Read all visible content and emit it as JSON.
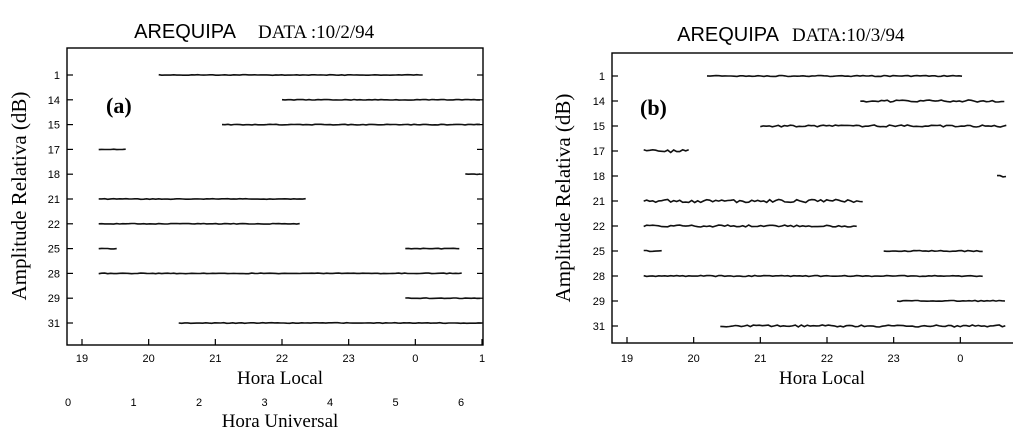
{
  "chart_data": [
    {
      "type": "line",
      "panel_label": "(a)",
      "title_place": "AREQUIPA",
      "title_date": "DATA :10/2/94",
      "ylabel": "Amplitude Relativa (dB)",
      "xlabel": "Hora Local",
      "xlabel2": "Hora Universal",
      "x_ticks": [
        "19",
        "20",
        "21",
        "22",
        "23",
        "0",
        "1"
      ],
      "x2_ticks": [
        "0",
        "1",
        "2",
        "3",
        "4",
        "5",
        "6"
      ],
      "xlim": [
        19,
        25
      ],
      "categories": [
        "1",
        "14",
        "15",
        "17",
        "18",
        "21",
        "22",
        "25",
        "28",
        "29",
        "31"
      ],
      "series": [
        {
          "satellite": "1",
          "segments": [
            [
              20.15,
              24.15
            ]
          ],
          "noise": 0
        },
        {
          "satellite": "14",
          "segments": [
            [
              22.0,
              25.0
            ]
          ],
          "noise": 0
        },
        {
          "satellite": "15",
          "segments": [
            [
              21.1,
              25.0
            ]
          ],
          "noise": 0
        },
        {
          "satellite": "17",
          "segments": [
            [
              19.25,
              19.7
            ]
          ],
          "noise": 0
        },
        {
          "satellite": "18",
          "segments": [
            [
              24.75,
              25.0
            ]
          ],
          "noise": 0
        },
        {
          "satellite": "21",
          "segments": [
            [
              19.25,
              22.4
            ]
          ],
          "noise": 0
        },
        {
          "satellite": "22",
          "segments": [
            [
              19.25,
              22.3
            ]
          ],
          "noise": 0
        },
        {
          "satellite": "25",
          "segments": [
            [
              19.25,
              19.55
            ],
            [
              23.85,
              24.7
            ]
          ],
          "noise": 0
        },
        {
          "satellite": "28",
          "segments": [
            [
              19.25,
              24.7
            ]
          ],
          "noise": 0
        },
        {
          "satellite": "29",
          "segments": [
            [
              23.85,
              25.0
            ]
          ],
          "noise": 0
        },
        {
          "satellite": "31",
          "segments": [
            [
              20.45,
              25.0
            ]
          ],
          "noise": 0
        }
      ]
    },
    {
      "type": "line",
      "panel_label": "(b)",
      "title_place": "AREQUIPA",
      "title_date": "DATA:10/3/94",
      "ylabel": "Amplitude Relativa (dB)",
      "xlabel": "Hora Local",
      "x_ticks": [
        "19",
        "20",
        "21",
        "22",
        "23",
        "0"
      ],
      "xlim": [
        19,
        24.7
      ],
      "categories": [
        "1",
        "14",
        "15",
        "17",
        "18",
        "21",
        "22",
        "25",
        "28",
        "29",
        "31"
      ],
      "series": [
        {
          "satellite": "1",
          "segments": [
            [
              20.2,
              24.05
            ]
          ],
          "noise": 1
        },
        {
          "satellite": "14",
          "segments": [
            [
              22.5,
              24.7
            ]
          ],
          "noise": 2
        },
        {
          "satellite": "15",
          "segments": [
            [
              21.0,
              24.7
            ]
          ],
          "noise": 2
        },
        {
          "satellite": "17",
          "segments": [
            [
              19.25,
              19.95
            ]
          ],
          "noise": 3
        },
        {
          "satellite": "18",
          "segments": [
            [
              24.55,
              24.7
            ]
          ],
          "noise": 2
        },
        {
          "satellite": "21",
          "segments": [
            [
              19.25,
              22.55
            ]
          ],
          "noise": 3
        },
        {
          "satellite": "22",
          "segments": [
            [
              19.25,
              22.45
            ]
          ],
          "noise": 2
        },
        {
          "satellite": "25",
          "segments": [
            [
              19.25,
              19.55
            ],
            [
              22.85,
              24.35
            ]
          ],
          "noise": 1
        },
        {
          "satellite": "28",
          "segments": [
            [
              19.25,
              24.35
            ]
          ],
          "noise": 1
        },
        {
          "satellite": "29",
          "segments": [
            [
              23.05,
              24.7
            ]
          ],
          "noise": 1
        },
        {
          "satellite": "31",
          "segments": [
            [
              20.4,
              24.7
            ]
          ],
          "noise": 2
        }
      ]
    }
  ]
}
